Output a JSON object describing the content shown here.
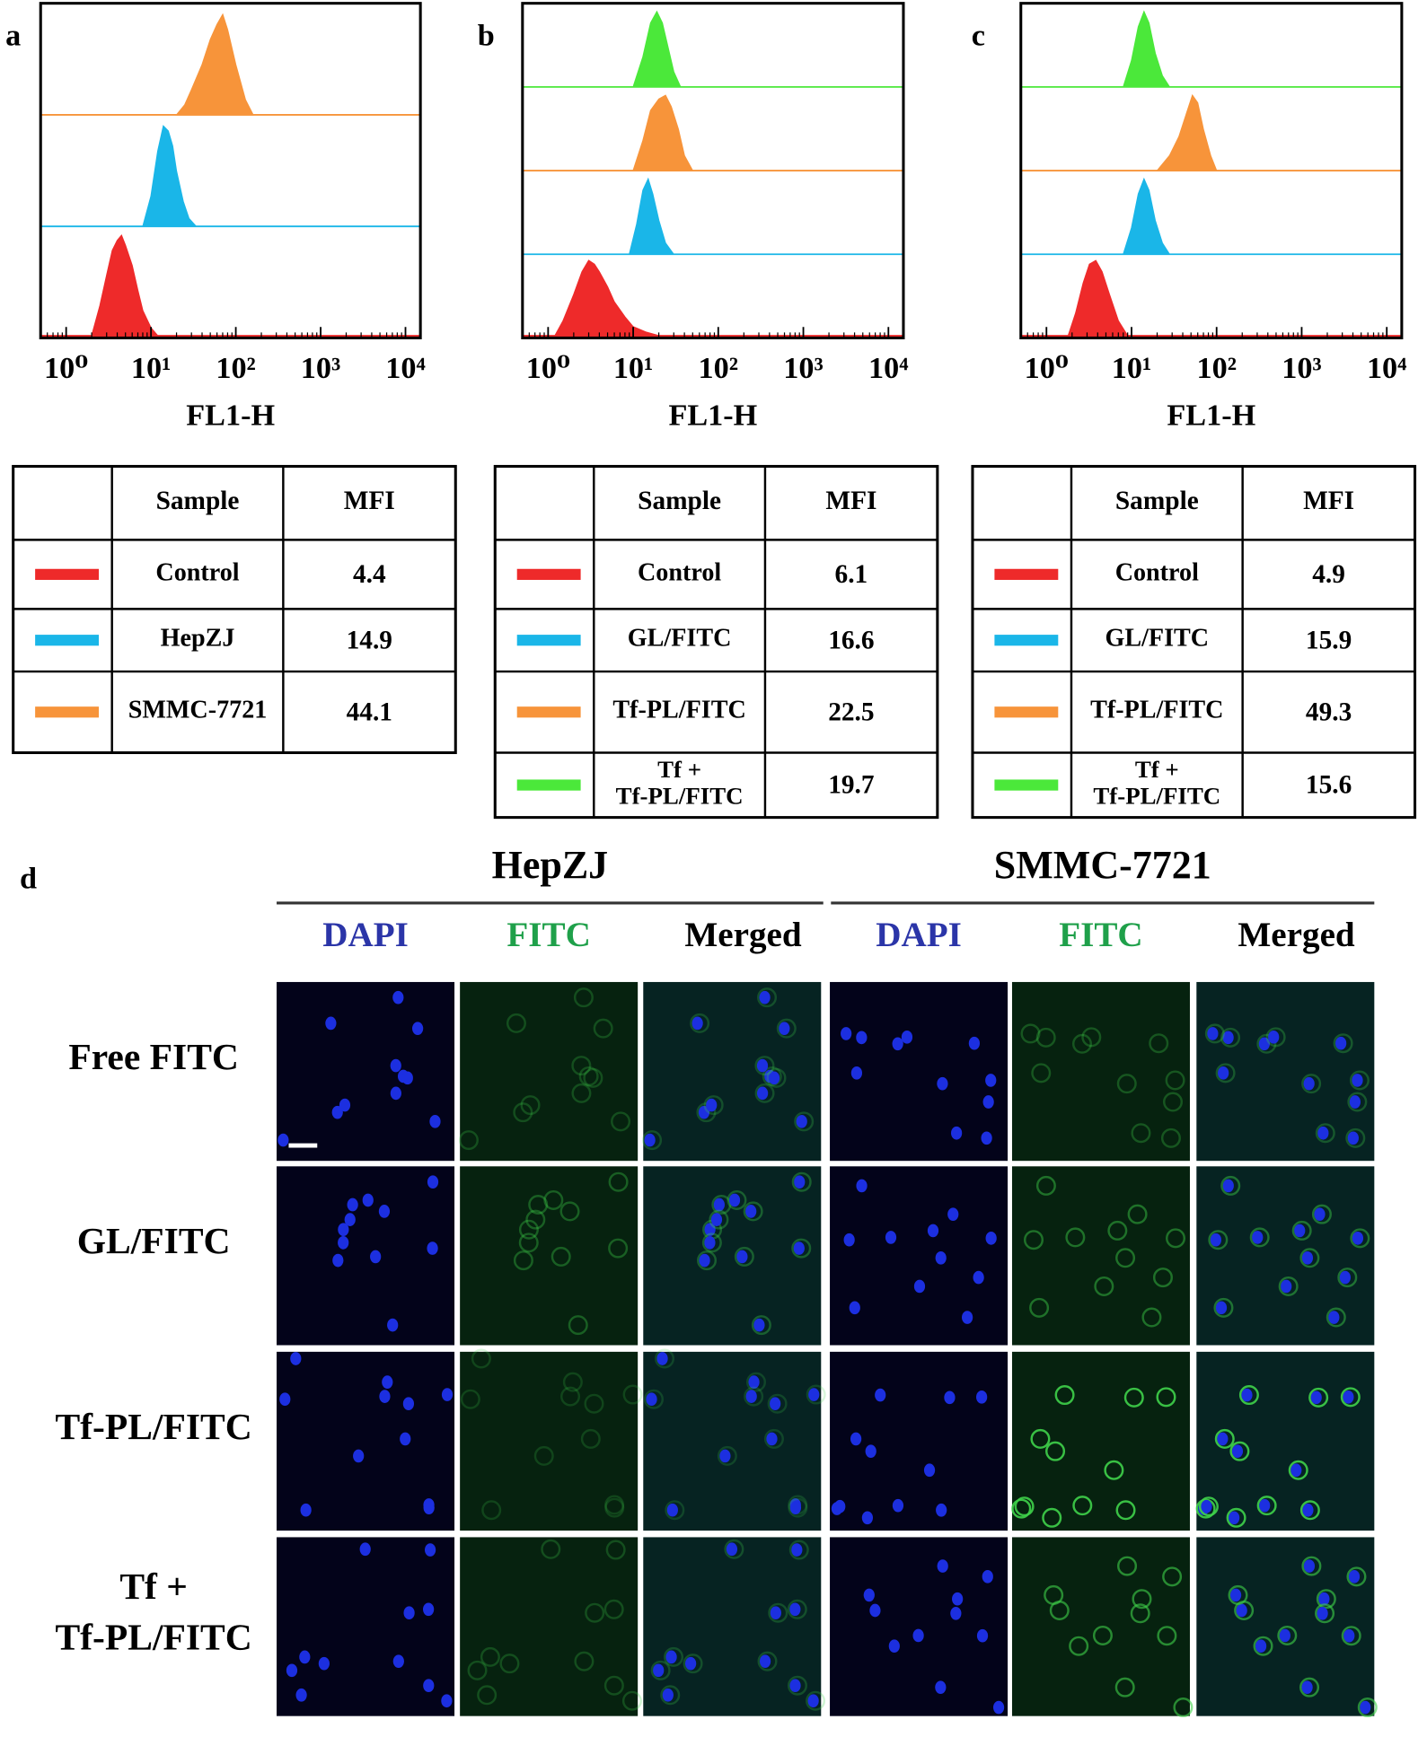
{
  "panel_labels": [
    "a",
    "b",
    "c",
    "d"
  ],
  "chart_data": [
    {
      "type": "area",
      "x_label": "FL1-H",
      "log_x": true,
      "xlim": [
        0.5,
        15000
      ],
      "xticks": [
        {
          "value": 1,
          "label": "10⁰"
        },
        {
          "value": 10,
          "label": "10¹"
        },
        {
          "value": 100,
          "label": "10²"
        },
        {
          "value": 1000,
          "label": "10³"
        },
        {
          "value": 10000,
          "label": "10⁴"
        }
      ],
      "series": [
        {
          "color": "#ee2a2a",
          "x": [
            2,
            2.5,
            3,
            3.5,
            4,
            4.5,
            5,
            6,
            7,
            8,
            10,
            12
          ],
          "values": [
            0,
            30,
            60,
            85,
            95,
            100,
            90,
            70,
            45,
            25,
            8,
            0
          ]
        },
        {
          "color": "#1ab6e8",
          "x": [
            8,
            10,
            12,
            14,
            16,
            18,
            20,
            24,
            28,
            34
          ],
          "values": [
            0,
            30,
            75,
            100,
            95,
            80,
            55,
            25,
            8,
            0
          ]
        },
        {
          "color": "#f7943a",
          "x": [
            20,
            25,
            30,
            40,
            50,
            60,
            70,
            80,
            100,
            130,
            160
          ],
          "values": [
            0,
            10,
            25,
            50,
            75,
            90,
            100,
            85,
            50,
            15,
            0
          ]
        }
      ]
    },
    {
      "type": "area",
      "x_label": "FL1-H",
      "log_x": true,
      "xlim": [
        0.5,
        15000
      ],
      "xticks": [
        {
          "value": 1,
          "label": "10⁰"
        },
        {
          "value": 10,
          "label": "10¹"
        },
        {
          "value": 100,
          "label": "10²"
        },
        {
          "value": 1000,
          "label": "10³"
        },
        {
          "value": 10000,
          "label": "10⁴"
        }
      ],
      "series": [
        {
          "color": "#ee2a2a",
          "x": [
            1.2,
            1.5,
            2,
            2.5,
            3,
            3.5,
            4,
            5,
            6,
            8,
            10,
            14,
            20
          ],
          "values": [
            0,
            20,
            55,
            85,
            100,
            95,
            85,
            65,
            45,
            25,
            12,
            5,
            0
          ]
        },
        {
          "color": "#1ab6e8",
          "x": [
            9,
            11,
            13,
            15,
            17,
            20,
            24,
            30
          ],
          "values": [
            0,
            40,
            85,
            100,
            80,
            45,
            15,
            0
          ]
        },
        {
          "color": "#f7943a",
          "x": [
            10,
            13,
            16,
            20,
            24,
            28,
            34,
            40,
            50
          ],
          "values": [
            0,
            40,
            80,
            95,
            100,
            85,
            55,
            20,
            0
          ]
        },
        {
          "color": "#4be83a",
          "x": [
            10,
            13,
            16,
            19,
            22,
            26,
            30,
            36
          ],
          "values": [
            0,
            40,
            85,
            100,
            85,
            50,
            20,
            0
          ]
        }
      ]
    },
    {
      "type": "area",
      "x_label": "FL1-H",
      "log_x": true,
      "xlim": [
        0.5,
        15000
      ],
      "xticks": [
        {
          "value": 1,
          "label": "10⁰"
        },
        {
          "value": 10,
          "label": "10¹"
        },
        {
          "value": 100,
          "label": "10²"
        },
        {
          "value": 1000,
          "label": "10³"
        },
        {
          "value": 10000,
          "label": "10⁴"
        }
      ],
      "series": [
        {
          "color": "#ee2a2a",
          "x": [
            1.8,
            2.2,
            2.7,
            3.2,
            3.8,
            4.5,
            5.5,
            7,
            9
          ],
          "values": [
            0,
            30,
            70,
            95,
            100,
            85,
            55,
            20,
            0
          ]
        },
        {
          "color": "#1ab6e8",
          "x": [
            8,
            10,
            12,
            14,
            16,
            19,
            23,
            28
          ],
          "values": [
            0,
            35,
            80,
            100,
            85,
            45,
            15,
            0
          ]
        },
        {
          "color": "#f7943a",
          "x": [
            20,
            28,
            36,
            44,
            52,
            60,
            70,
            85,
            100
          ],
          "values": [
            0,
            20,
            45,
            75,
            100,
            90,
            55,
            20,
            0
          ]
        },
        {
          "color": "#4be83a",
          "x": [
            8,
            10,
            12,
            14,
            16,
            19,
            23,
            28
          ],
          "values": [
            0,
            35,
            80,
            100,
            85,
            45,
            15,
            0
          ]
        }
      ]
    }
  ],
  "tables": [
    {
      "header": [
        "Sample",
        "MFI"
      ],
      "rows": [
        {
          "color": "#ee2a2a",
          "sample": [
            "Control"
          ],
          "mfi": 4.4
        },
        {
          "color": "#1ab6e8",
          "sample": [
            "HepZJ"
          ],
          "mfi": 14.9
        },
        {
          "color": "#f7943a",
          "sample": [
            "SMMC-7721"
          ],
          "mfi": 44.1
        }
      ]
    },
    {
      "header": [
        "Sample",
        "MFI"
      ],
      "rows": [
        {
          "color": "#ee2a2a",
          "sample": [
            "Control"
          ],
          "mfi": 6.1
        },
        {
          "color": "#1ab6e8",
          "sample": [
            "GL/FITC"
          ],
          "mfi": 16.6
        },
        {
          "color": "#f7943a",
          "sample": [
            "Tf-PL/FITC"
          ],
          "mfi": 22.5
        },
        {
          "color": "#4be83a",
          "sample": [
            "Tf +",
            "Tf-PL/FITC"
          ],
          "mfi": 19.7
        }
      ]
    },
    {
      "header": [
        "Sample",
        "MFI"
      ],
      "rows": [
        {
          "color": "#ee2a2a",
          "sample": [
            "Control"
          ],
          "mfi": 4.9
        },
        {
          "color": "#1ab6e8",
          "sample": [
            "GL/FITC"
          ],
          "mfi": 15.9
        },
        {
          "color": "#f7943a",
          "sample": [
            "Tf-PL/FITC"
          ],
          "mfi": 49.3
        },
        {
          "color": "#4be83a",
          "sample": [
            "Tf +",
            "Tf-PL/FITC"
          ],
          "mfi": 15.6
        }
      ]
    }
  ],
  "microscopy": {
    "groups": [
      "HepZJ",
      "SMMC-7721"
    ],
    "channels": [
      {
        "name": "DAPI",
        "color": "#2b35a8"
      },
      {
        "name": "FITC",
        "color": "#1fa04a"
      },
      {
        "name": "Merged",
        "color": "#000000"
      }
    ],
    "rows": [
      [
        "Free FITC"
      ],
      [
        "GL/FITC"
      ],
      [
        "Tf-PL/FITC"
      ],
      [
        "Tf +",
        "Tf-PL/FITC"
      ]
    ]
  }
}
